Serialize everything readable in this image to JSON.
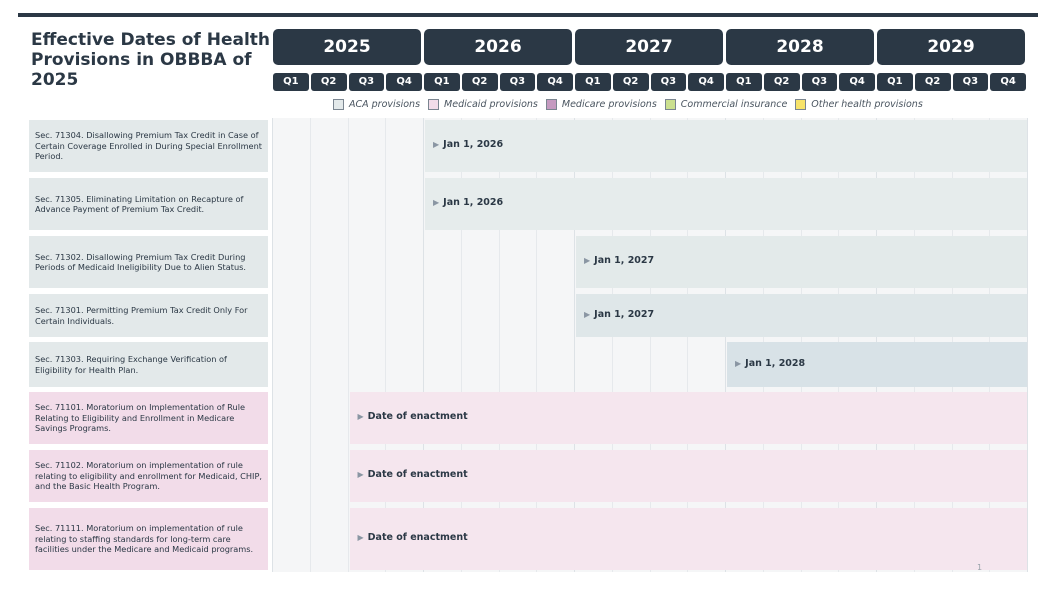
{
  "title": "Effective Dates of Health Provisions in OBBBA of 2025",
  "page_number": "1",
  "timeline": {
    "years": [
      "2025",
      "2026",
      "2027",
      "2028",
      "2029"
    ],
    "quarters": [
      "Q1",
      "Q2",
      "Q3",
      "Q4"
    ]
  },
  "legend": [
    {
      "label": "ACA provisions",
      "color": "#e3e9ea"
    },
    {
      "label": "Medicaid provisions",
      "color": "#f2dce9"
    },
    {
      "label": "Medicare provisions",
      "color": "#c59ac0"
    },
    {
      "label": "Commercial insurance",
      "color": "#cbe08f"
    },
    {
      "label": "Other health provisions",
      "color": "#f7e36a"
    }
  ],
  "chart_data": {
    "type": "timeline",
    "x_axis": {
      "years": [
        "2025",
        "2026",
        "2027",
        "2028",
        "2029"
      ],
      "quarters": [
        "Q1",
        "Q2",
        "Q3",
        "Q4"
      ],
      "range": [
        "2025-Q1",
        "2029-Q4"
      ]
    },
    "rows": [
      {
        "label": "Sec. 71304. Disallowing Premium Tax Credit in Case of Certain Coverage Enrolled in During Special Enrollment Period.",
        "category": "ACA provisions",
        "start": "2026-Q1",
        "start_label": "Jan 1, 2026",
        "label_bg": "#e3e9ea",
        "bar_color": "#e6ecec"
      },
      {
        "label": "Sec. 71305. Eliminating Limitation on Recapture of Advance Payment of Premium Tax Credit.",
        "category": "ACA provisions",
        "start": "2026-Q1",
        "start_label": "Jan 1, 2026",
        "label_bg": "#e3e9ea",
        "bar_color": "#e6ecec"
      },
      {
        "label": "Sec. 71302. Disallowing Premium Tax Credit During Periods of Medicaid Ineligibility Due to Alien Status.",
        "category": "ACA provisions",
        "start": "2027-Q1",
        "start_label": "Jan 1, 2027",
        "label_bg": "#e3e9ea",
        "bar_color": "#e3eaea"
      },
      {
        "label": "Sec. 71301. Permitting Premium Tax Credit Only For Certain Individuals.",
        "category": "ACA provisions",
        "start": "2027-Q1",
        "start_label": "Jan 1, 2027",
        "label_bg": "#e3e9ea",
        "bar_color": "#dfe7e9"
      },
      {
        "label": "Sec. 71303. Requiring Exchange Verification of Eligibility for Health Plan.",
        "category": "ACA provisions",
        "start": "2028-Q1",
        "start_label": "Jan 1, 2028",
        "label_bg": "#e3e9ea",
        "bar_color": "#d8e2e7"
      },
      {
        "label": "Sec. 71101. Moratorium on Implementation of Rule Relating to Eligibility and Enrollment in Medicare Savings Programs.",
        "category": "Medicaid provisions",
        "start": "2025-Q3",
        "start_label": "Date of enactment",
        "label_bg": "#f2dce9",
        "bar_color": "#f5e6ee"
      },
      {
        "label": "Sec. 71102. Moratorium on implementation of rule relating to eligibility and enrollment for Medicaid, CHIP, and the Basic Health Program.",
        "category": "Medicaid provisions",
        "start": "2025-Q3",
        "start_label": "Date of enactment",
        "label_bg": "#f2dce9",
        "bar_color": "#f5e6ee"
      },
      {
        "label": "Sec. 71111. Moratorium on implementation of rule relating to staffing standards for long-term care facilities under the Medicare and Medicaid programs.",
        "category": "Medicaid provisions",
        "start": "2025-Q3",
        "start_label": "Date of enactment",
        "label_bg": "#f2dce9",
        "bar_color": "#f5e6ee"
      }
    ]
  }
}
